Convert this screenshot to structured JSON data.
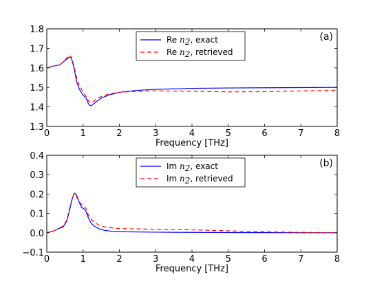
{
  "chart_data": [
    {
      "type": "line",
      "panel_label": "(a)",
      "xlabel": "Frequency [THz]",
      "ylabel": "",
      "xlim": [
        0,
        8
      ],
      "ylim": [
        1.3,
        1.8
      ],
      "xticks": [
        "0",
        "1",
        "2",
        "3",
        "4",
        "5",
        "6",
        "7",
        "8"
      ],
      "yticks": [
        "1.3",
        "1.4",
        "1.5",
        "1.6",
        "1.7",
        "1.8"
      ],
      "legend_position": "top-center",
      "grid": false,
      "series": [
        {
          "name_prefix": "Re ",
          "name_var": "n",
          "name_sub": "2",
          "name_suffix": ", exact",
          "color": "#0000ff",
          "dash": "solid",
          "x": [
            0,
            0.2,
            0.35,
            0.45,
            0.55,
            0.62,
            0.68,
            0.75,
            0.82,
            0.9,
            1.0,
            1.08,
            1.15,
            1.2,
            1.25,
            1.35,
            1.5,
            1.7,
            2.0,
            2.5,
            3.0,
            4.0,
            5.0,
            6.0,
            7.0,
            8.0
          ],
          "y": [
            1.6,
            1.61,
            1.615,
            1.63,
            1.645,
            1.655,
            1.65,
            1.6,
            1.53,
            1.49,
            1.46,
            1.445,
            1.415,
            1.405,
            1.41,
            1.425,
            1.445,
            1.46,
            1.475,
            1.485,
            1.49,
            1.495,
            1.497,
            1.498,
            1.499,
            1.5
          ]
        },
        {
          "name_prefix": "Re ",
          "name_var": "n",
          "name_sub": "2",
          "name_suffix": ", retrieved",
          "color": "#ff0000",
          "dash": "dashed",
          "x": [
            0,
            0.2,
            0.35,
            0.45,
            0.55,
            0.62,
            0.68,
            0.75,
            0.82,
            0.9,
            1.0,
            1.08,
            1.15,
            1.22,
            1.3,
            1.4,
            1.6,
            1.8,
            2.0,
            2.5,
            3.0,
            4.0,
            5.0,
            6.0,
            7.0,
            8.0
          ],
          "y": [
            1.6,
            1.61,
            1.615,
            1.63,
            1.65,
            1.665,
            1.655,
            1.61,
            1.55,
            1.51,
            1.475,
            1.455,
            1.43,
            1.42,
            1.43,
            1.445,
            1.46,
            1.47,
            1.475,
            1.48,
            1.482,
            1.48,
            1.477,
            1.478,
            1.482,
            1.485
          ]
        }
      ]
    },
    {
      "type": "line",
      "panel_label": "(b)",
      "xlabel": "Frequency [THz]",
      "ylabel": "",
      "xlim": [
        0,
        8
      ],
      "ylim": [
        -0.1,
        0.4
      ],
      "xticks": [
        "0",
        "1",
        "2",
        "3",
        "4",
        "5",
        "6",
        "7",
        "8"
      ],
      "yticks": [
        "−0.1",
        "0.0",
        "0.1",
        "0.2",
        "0.3",
        "0.4"
      ],
      "legend_position": "top-center",
      "grid": false,
      "series": [
        {
          "name_prefix": "Im ",
          "name_var": "n",
          "name_sub": "2",
          "name_suffix": ", exact",
          "color": "#0000ff",
          "dash": "solid",
          "x": [
            0,
            0.2,
            0.3,
            0.45,
            0.55,
            0.62,
            0.7,
            0.76,
            0.82,
            0.9,
            0.96,
            1.02,
            1.08,
            1.15,
            1.22,
            1.3,
            1.45,
            1.6,
            1.8,
            2.2,
            3.0,
            4.0,
            5.0,
            6.0,
            7.0,
            8.0
          ],
          "y": [
            0.0,
            0.01,
            0.02,
            0.03,
            0.06,
            0.11,
            0.175,
            0.205,
            0.195,
            0.155,
            0.13,
            0.125,
            0.11,
            0.075,
            0.05,
            0.035,
            0.02,
            0.012,
            0.008,
            0.005,
            0.003,
            0.002,
            0.001,
            0.0005,
            0.0,
            0.0
          ]
        },
        {
          "name_prefix": "Im ",
          "name_var": "n",
          "name_sub": "2",
          "name_suffix": ", retrieved",
          "color": "#ff0000",
          "dash": "dashed",
          "x": [
            0,
            0.2,
            0.3,
            0.45,
            0.55,
            0.62,
            0.7,
            0.76,
            0.82,
            0.9,
            0.96,
            1.02,
            1.08,
            1.15,
            1.22,
            1.3,
            1.45,
            1.6,
            1.8,
            2.0,
            2.5,
            3.0,
            4.0,
            5.0,
            6.0,
            7.0,
            8.0
          ],
          "y": [
            0.0,
            0.01,
            0.02,
            0.035,
            0.065,
            0.12,
            0.18,
            0.2,
            0.185,
            0.16,
            0.145,
            0.14,
            0.125,
            0.09,
            0.07,
            0.055,
            0.038,
            0.03,
            0.025,
            0.022,
            0.02,
            0.018,
            0.015,
            0.01,
            0.005,
            0.002,
            0.0
          ]
        }
      ]
    }
  ]
}
